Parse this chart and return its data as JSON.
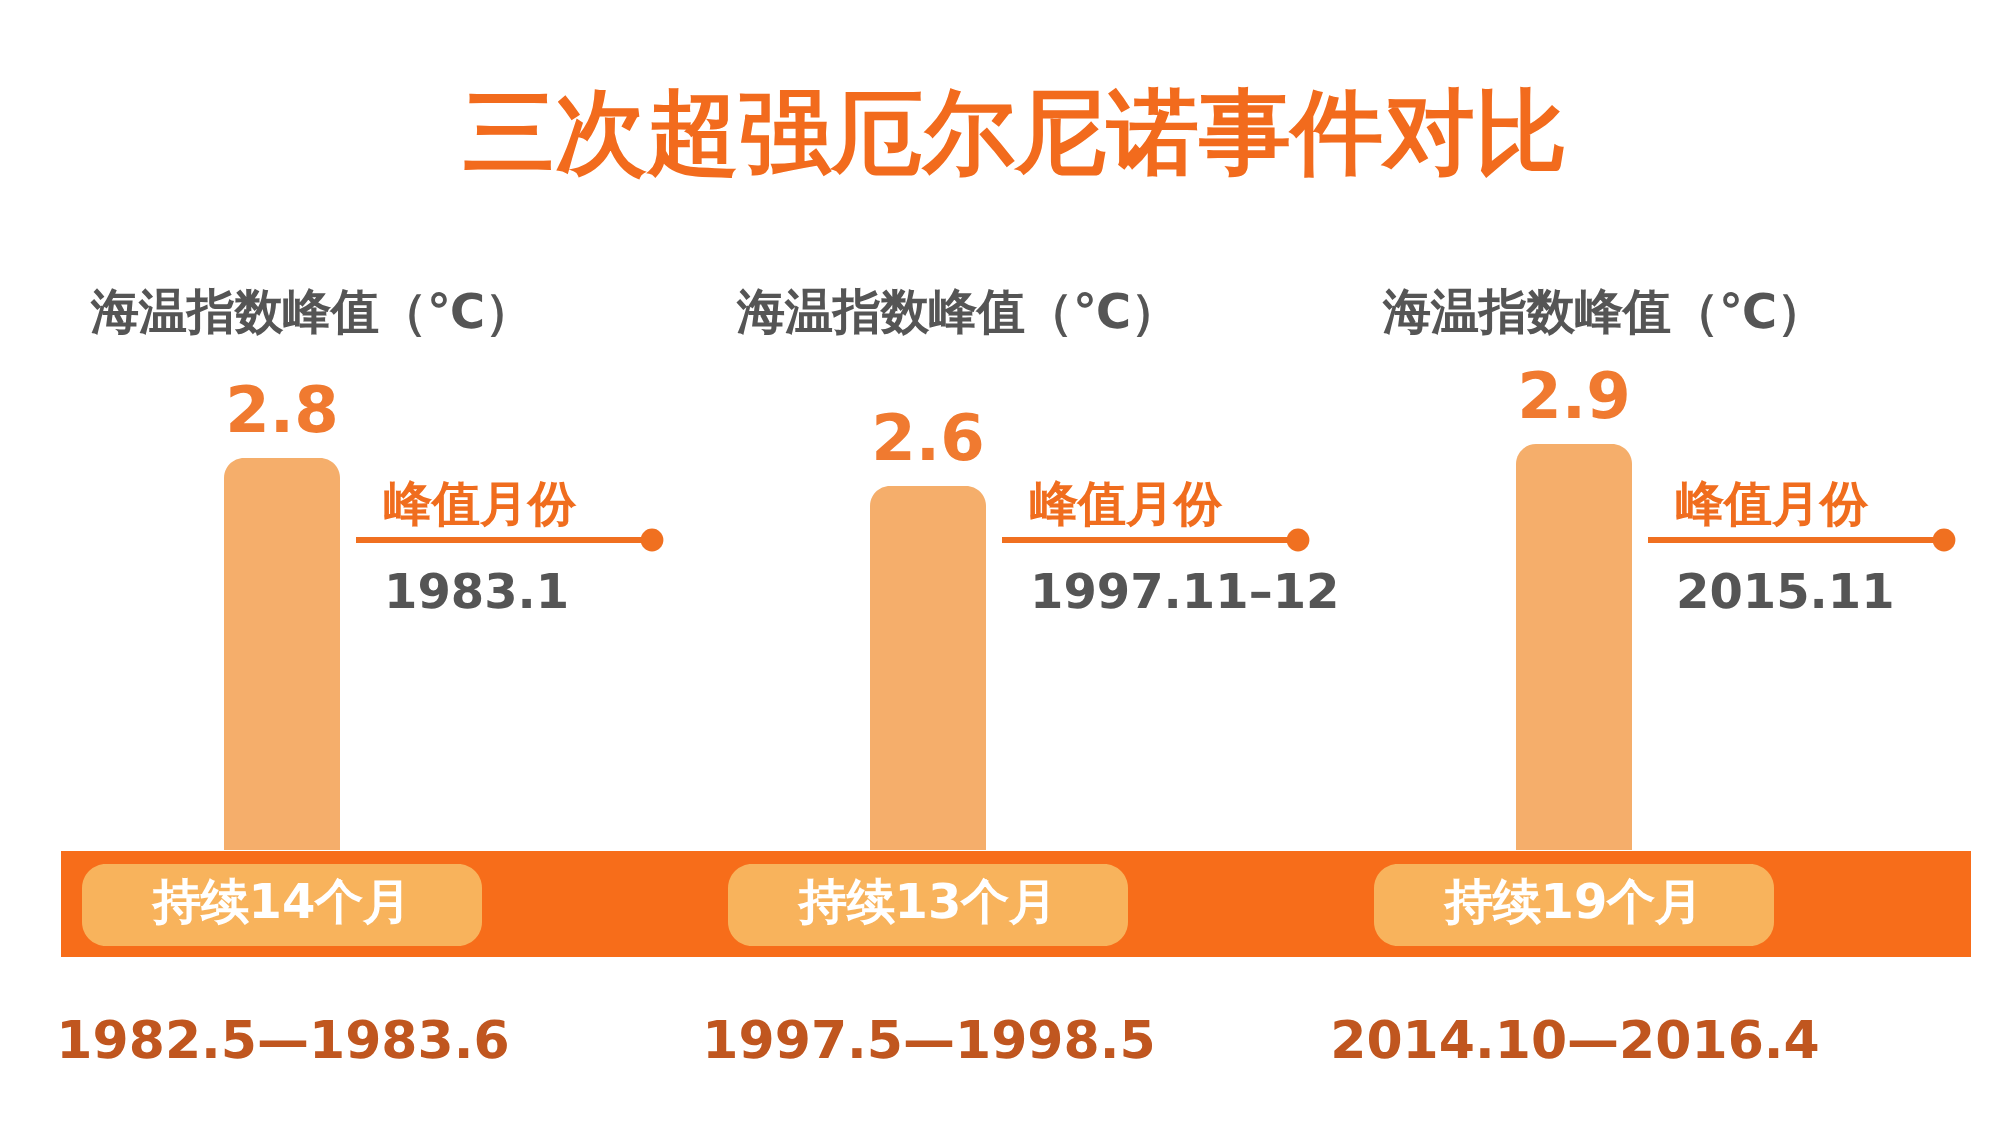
{
  "chart_data": {
    "type": "bar",
    "title": "三次超强厄尔尼诺事件对比",
    "categories": [
      "1982.5—1983.6",
      "1997.5—1998.5",
      "2014.10—2016.4"
    ],
    "values": [
      2.8,
      2.6,
      2.9
    ],
    "color": "#f5ae6b",
    "data_labels": true,
    "annotations": [
      "海温指数峰值（℃）",
      "峰值月份",
      "1983.1",
      "持续14个月",
      "海温指数峰值（℃）",
      "峰值月份",
      "1997.11–12",
      "持续13个月",
      "海温指数峰值（℃）",
      "峰值月份",
      "2015.11",
      "持续19个月"
    ]
  }
}
